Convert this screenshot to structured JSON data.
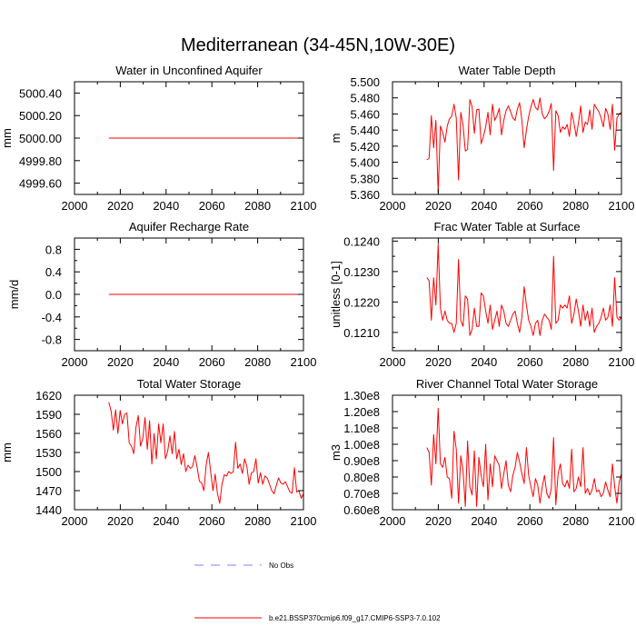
{
  "figure_title": "Mediterranean (34-45N,10W-30E)",
  "colors": {
    "model": "#ff0000",
    "obs": "#8080ff"
  },
  "legend": {
    "obs_label": "No Obs",
    "model_label": "b.e21.BSSP370cmip6.f09_g17.CMIP6-SSP3-7.0.102"
  },
  "chart_data": [
    {
      "type": "line",
      "title": "Water in Unconfined Aquifer",
      "xlabel": "",
      "ylabel": "mm",
      "xlim": [
        2000,
        2100
      ],
      "ylim": [
        4999.5,
        5000.5
      ],
      "xticks": [
        2000,
        2020,
        2040,
        2060,
        2080,
        2100
      ],
      "xticklabels": [
        "2000",
        "2020",
        "2040",
        "2060",
        "2080",
        "2100"
      ],
      "yticks": [
        4999.6,
        4999.8,
        5000.0,
        5000.2,
        5000.4
      ],
      "yticklabels": [
        "4999.60",
        "4999.80",
        "5000.00",
        "5000.20",
        "5000.40"
      ],
      "yminor": [],
      "series": [
        {
          "name": "b.e21.BSSP370cmip6.f09_g17.CMIP6-SSP3-7.0.102",
          "x_start": 2015,
          "x_end": 2100,
          "values": [
            5000.0,
            5000.0
          ]
        }
      ]
    },
    {
      "type": "line",
      "title": "Water Table Depth",
      "xlabel": "",
      "ylabel": "m",
      "xlim": [
        2000,
        2100
      ],
      "ylim": [
        5.36,
        5.5
      ],
      "xticks": [
        2000,
        2020,
        2040,
        2060,
        2080,
        2100
      ],
      "xticklabels": [
        "2000",
        "2020",
        "2040",
        "2060",
        "2080",
        "2100"
      ],
      "yticks": [
        5.36,
        5.38,
        5.4,
        5.42,
        5.44,
        5.46,
        5.48,
        5.5
      ],
      "yticklabels": [
        "5.360",
        "5.380",
        "5.400",
        "5.420",
        "5.440",
        "5.460",
        "5.480",
        "5.500"
      ],
      "yminor": [],
      "series": [
        {
          "name": "b.e21.BSSP370cmip6.f09_g17.CMIP6-SSP3-7.0.102",
          "x_start": 2015,
          "x_end": 2100,
          "values": [
            5.403,
            5.405,
            5.458,
            5.418,
            5.452,
            5.362,
            5.445,
            5.437,
            5.425,
            5.445,
            5.454,
            5.457,
            5.472,
            5.455,
            5.378,
            5.462,
            5.446,
            5.414,
            5.416,
            5.478,
            5.469,
            5.436,
            5.465,
            5.466,
            5.423,
            5.432,
            5.444,
            5.462,
            5.434,
            5.472,
            5.452,
            5.458,
            5.467,
            5.434,
            5.452,
            5.464,
            5.47,
            5.463,
            5.455,
            5.452,
            5.466,
            5.474,
            5.452,
            5.418,
            5.44,
            5.457,
            5.469,
            5.478,
            5.468,
            5.465,
            5.48,
            5.46,
            5.454,
            5.457,
            5.463,
            5.473,
            5.39,
            5.464,
            5.458,
            5.437,
            5.444,
            5.441,
            5.447,
            5.432,
            5.462,
            5.449,
            5.432,
            5.449,
            5.47,
            5.437,
            5.45,
            5.447,
            5.465,
            5.441,
            5.472,
            5.467,
            5.463,
            5.455,
            5.444,
            5.467,
            5.46,
            5.441,
            5.472,
            5.415,
            5.455,
            5.46,
            5.462
          ]
        }
      ]
    },
    {
      "type": "line",
      "title": "Aquifer Recharge Rate",
      "xlabel": "",
      "ylabel": "mm/d",
      "xlim": [
        2000,
        2100
      ],
      "ylim": [
        -1.0,
        1.0
      ],
      "xticks": [
        2000,
        2020,
        2040,
        2060,
        2080,
        2100
      ],
      "xticklabels": [
        "2000",
        "2020",
        "2040",
        "2060",
        "2080",
        "2100"
      ],
      "yticks": [
        -0.8,
        -0.4,
        0.0,
        0.4,
        0.8
      ],
      "yticklabels": [
        "-0.8",
        "-0.4",
        "0.0",
        "0.4",
        "0.8"
      ],
      "yminor": [
        -0.6,
        -0.2,
        0.2,
        0.6
      ],
      "series": [
        {
          "name": "b.e21.BSSP370cmip6.f09_g17.CMIP6-SSP3-7.0.102",
          "x_start": 2015,
          "x_end": 2100,
          "values": [
            0.0,
            0.0
          ]
        }
      ]
    },
    {
      "type": "line",
      "title": "Frac Water Table at Surface",
      "xlabel": "",
      "ylabel": "unitless [0-1]",
      "xlim": [
        2000,
        2100
      ],
      "ylim": [
        0.1204,
        0.1241
      ],
      "xticks": [
        2000,
        2020,
        2040,
        2060,
        2080,
        2100
      ],
      "xticklabels": [
        "2000",
        "2020",
        "2040",
        "2060",
        "2080",
        "2100"
      ],
      "yticks": [
        0.121,
        0.122,
        0.123,
        0.124
      ],
      "yticklabels": [
        "0.1210",
        "0.1220",
        "0.1230",
        "0.1240"
      ],
      "yminor": [
        0.1205,
        0.1215,
        0.1225,
        0.1235
      ],
      "series": [
        {
          "name": "b.e21.BSSP370cmip6.f09_g17.CMIP6-SSP3-7.0.102",
          "x_start": 2015,
          "x_end": 2100,
          "values": [
            0.1228,
            0.1227,
            0.1214,
            0.1228,
            0.1219,
            0.1239,
            0.1218,
            0.1214,
            0.1217,
            0.1214,
            0.1213,
            0.1213,
            0.121,
            0.1213,
            0.1234,
            0.1214,
            0.1212,
            0.1222,
            0.1221,
            0.1209,
            0.1211,
            0.1218,
            0.1212,
            0.1212,
            0.1223,
            0.1222,
            0.1217,
            0.1213,
            0.1219,
            0.1211,
            0.1214,
            0.1217,
            0.1212,
            0.1219,
            0.1217,
            0.1213,
            0.1212,
            0.1214,
            0.1216,
            0.1217,
            0.1213,
            0.121,
            0.1215,
            0.1225,
            0.1219,
            0.1214,
            0.1212,
            0.1209,
            0.1213,
            0.1214,
            0.1209,
            0.1214,
            0.1216,
            0.1215,
            0.1214,
            0.1211,
            0.1235,
            0.1213,
            0.1214,
            0.1219,
            0.1218,
            0.1219,
            0.1218,
            0.1222,
            0.1213,
            0.1216,
            0.1221,
            0.1217,
            0.1212,
            0.1219,
            0.1214,
            0.1217,
            0.1212,
            0.1218,
            0.121,
            0.1212,
            0.1213,
            0.1215,
            0.1218,
            0.1214,
            0.1215,
            0.1219,
            0.1212,
            0.1228,
            0.1215,
            0.1214,
            0.1215
          ]
        }
      ]
    },
    {
      "type": "line",
      "title": "Total Water Storage",
      "xlabel": "",
      "ylabel": "mm",
      "xlim": [
        2000,
        2100
      ],
      "ylim": [
        1440,
        1620
      ],
      "xticks": [
        2000,
        2020,
        2040,
        2060,
        2080,
        2100
      ],
      "xticklabels": [
        "2000",
        "2020",
        "2040",
        "2060",
        "2080",
        "2100"
      ],
      "yticks": [
        1440,
        1470,
        1500,
        1530,
        1560,
        1590,
        1620
      ],
      "yticklabels": [
        "1440",
        "1470",
        "1500",
        "1530",
        "1560",
        "1590",
        "1620"
      ],
      "yminor": [],
      "series": [
        {
          "name": "b.e21.BSSP370cmip6.f09_g17.CMIP6-SSP3-7.0.102",
          "x_start": 2015,
          "x_end": 2100,
          "values": [
            1609,
            1595,
            1565,
            1597,
            1560,
            1596,
            1575,
            1590,
            1592,
            1545,
            1540,
            1528,
            1570,
            1588,
            1540,
            1552,
            1585,
            1535,
            1580,
            1512,
            1560,
            1520,
            1575,
            1545,
            1575,
            1520,
            1532,
            1556,
            1528,
            1563,
            1520,
            1535,
            1511,
            1528,
            1500,
            1510,
            1505,
            1508,
            1525,
            1507,
            1485,
            1482,
            1470,
            1510,
            1530,
            1500,
            1470,
            1496,
            1465,
            1450,
            1480,
            1495,
            1493,
            1500,
            1497,
            1500,
            1546,
            1505,
            1512,
            1497,
            1520,
            1508,
            1480,
            1498,
            1500,
            1520,
            1482,
            1498,
            1480,
            1493,
            1490,
            1480,
            1470,
            1465,
            1478,
            1490,
            1482,
            1480,
            1484,
            1476,
            1468,
            1466,
            1506,
            1468,
            1470,
            1458,
            1465
          ]
        }
      ]
    },
    {
      "type": "line",
      "title": "River Channel Total Water Storage",
      "xlabel": "",
      "ylabel": "m3",
      "xlim": [
        2000,
        2100
      ],
      "ylim": [
        60000000,
        130000000
      ],
      "xticks": [
        2000,
        2020,
        2040,
        2060,
        2080,
        2100
      ],
      "xticklabels": [
        "2000",
        "2020",
        "2040",
        "2060",
        "2080",
        "2100"
      ],
      "yticks": [
        60000000,
        70000000,
        80000000,
        90000000,
        100000000,
        110000000,
        120000000,
        130000000
      ],
      "yticklabels": [
        "0.60e8",
        "0.70e8",
        "0.80e8",
        "0.90e8",
        "1.00e8",
        "1.10e8",
        "1.20e8",
        "1.30e8"
      ],
      "yminor": [],
      "series": [
        {
          "name": "b.e21.BSSP370cmip6.f09_g17.CMIP6-SSP3-7.0.102",
          "x_start": 2015,
          "x_end": 2100,
          "values": [
            98000000,
            95000000,
            75000000,
            106000000,
            88000000,
            122000000,
            88000000,
            86000000,
            92000000,
            80000000,
            79000000,
            67000000,
            108000000,
            97000000,
            64000000,
            93000000,
            84000000,
            62000000,
            102000000,
            74000000,
            69000000,
            96000000,
            62000000,
            92000000,
            81000000,
            74000000,
            100000000,
            66000000,
            88000000,
            74000000,
            93000000,
            90000000,
            87000000,
            73000000,
            82000000,
            90000000,
            75000000,
            71000000,
            81000000,
            86000000,
            95000000,
            89000000,
            82000000,
            76000000,
            98000000,
            81000000,
            74000000,
            68000000,
            79000000,
            75000000,
            64000000,
            74000000,
            81000000,
            70000000,
            67000000,
            73000000,
            104000000,
            63000000,
            82000000,
            88000000,
            76000000,
            74000000,
            78000000,
            73000000,
            97000000,
            71000000,
            73000000,
            80000000,
            74000000,
            98000000,
            70000000,
            73000000,
            69000000,
            72000000,
            79000000,
            71000000,
            72000000,
            68000000,
            70000000,
            77000000,
            72000000,
            68000000,
            88000000,
            74000000,
            64000000,
            77000000,
            82000000
          ]
        }
      ]
    }
  ]
}
